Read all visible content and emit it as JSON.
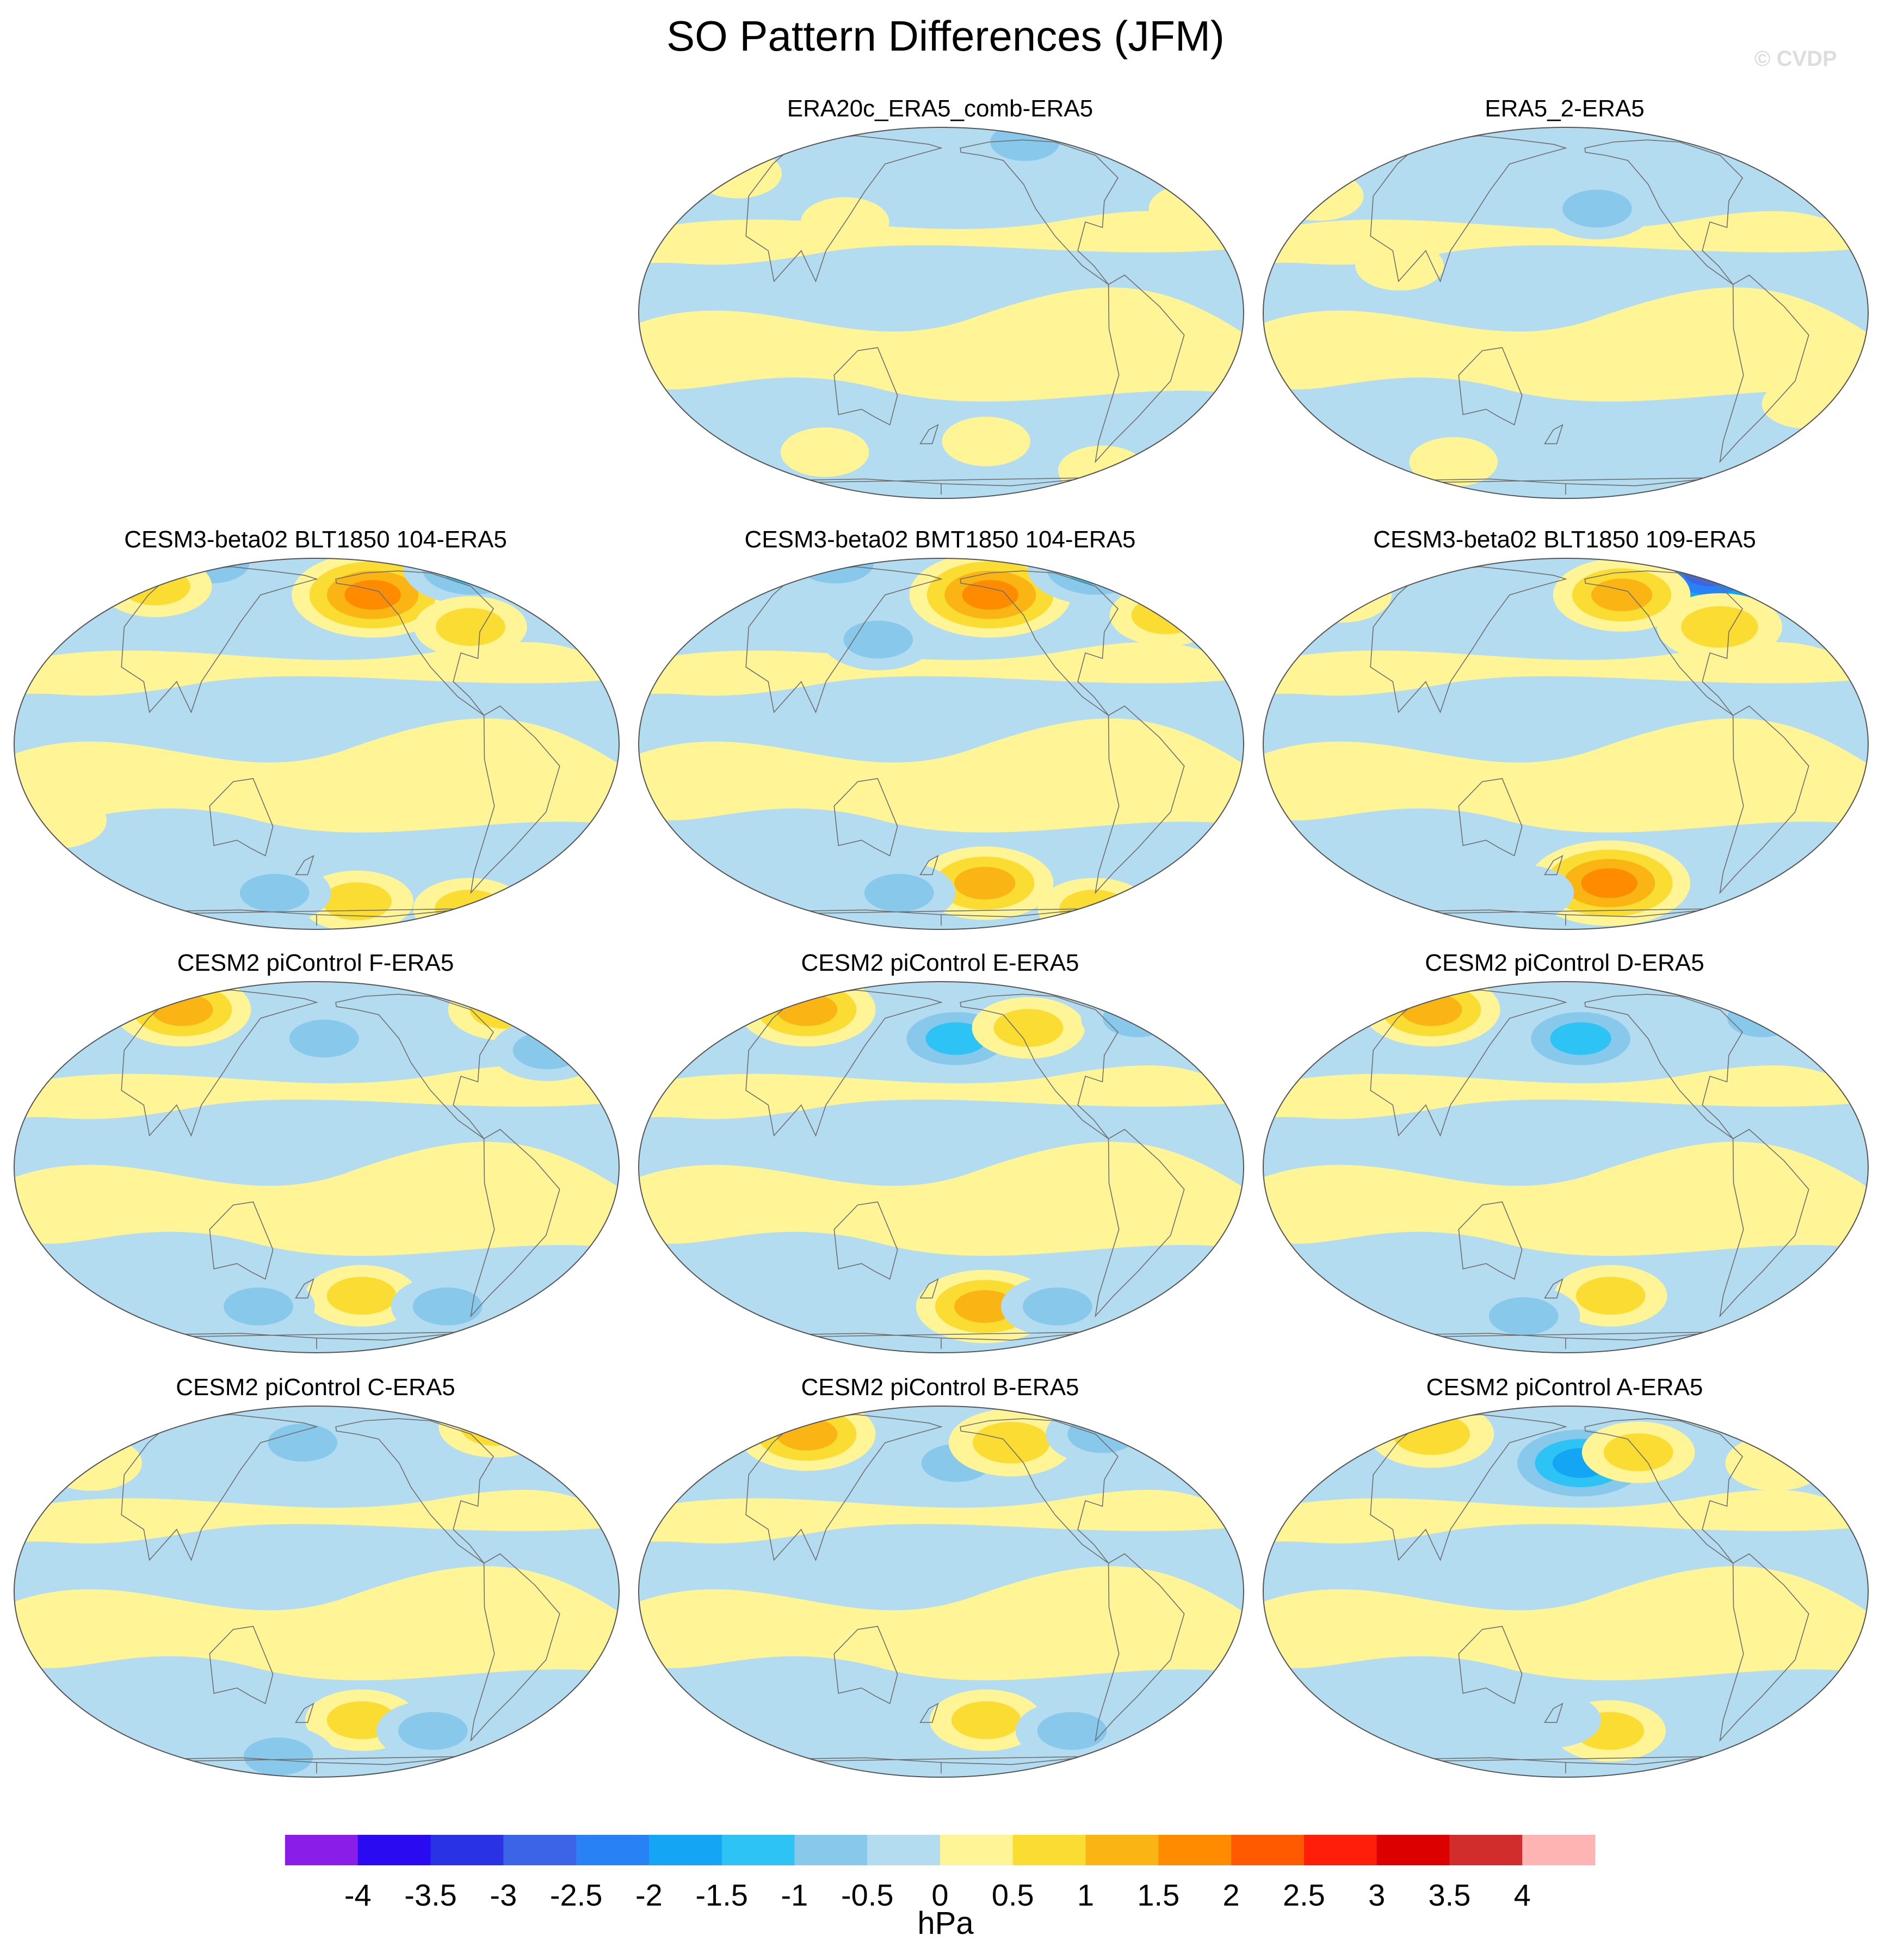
{
  "title": "SO Pattern Differences (JFM)",
  "watermark": "© CVDP",
  "chart_data": {
    "type": "contour-map-panels",
    "projection": "Robinson-like global map",
    "variable": "SO pattern difference",
    "units": "hPa",
    "colorbar": {
      "levels": [
        -4,
        -3.5,
        -3,
        -2.5,
        -2,
        -1.5,
        -1,
        -0.5,
        0,
        0.5,
        1,
        1.5,
        2,
        2.5,
        3,
        3.5,
        4
      ],
      "tick_labels": [
        "-4",
        "-3.5",
        "-3",
        "-2.5",
        "-2",
        "-1.5",
        "-1",
        "-0.5",
        "0",
        "0.5",
        "1",
        "1.5",
        "2",
        "2.5",
        "3",
        "3.5",
        "4"
      ],
      "colors": [
        "#8a1ee8",
        "#2a0af0",
        "#2a32e6",
        "#3c64e6",
        "#2882f5",
        "#14a5f5",
        "#2dc3f5",
        "#87c8eb",
        "#b4dcf0",
        "#fff596",
        "#fadc32",
        "#fab414",
        "#ff8c00",
        "#ff5a00",
        "#ff1e0a",
        "#dc0000",
        "#d22d2d",
        "#ffb4b4"
      ],
      "label": "hPa"
    },
    "panels": [
      {
        "title": "ERA20c_ERA5_comb-ERA5",
        "features": [
          {
            "lon": -110,
            "lat": 70,
            "value": -0.75
          },
          {
            "lon": -60,
            "lat": 55,
            "value": -0.5
          },
          {
            "lon": -20,
            "lat": 35,
            "value": 0.25
          },
          {
            "lon": 120,
            "lat": 30,
            "value": 0.25
          },
          {
            "lon": 40,
            "lat": 50,
            "value": 0.25
          },
          {
            "lon": -150,
            "lat": -45,
            "value": 0.25
          },
          {
            "lon": -60,
            "lat": -60,
            "value": 0.25
          },
          {
            "lon": 100,
            "lat": -50,
            "value": 0.25
          }
        ]
      },
      {
        "title": "ERA5_2-ERA5",
        "features": [
          {
            "lon": -160,
            "lat": 35,
            "value": -0.75
          },
          {
            "lon": -90,
            "lat": 60,
            "value": -0.25
          },
          {
            "lon": 80,
            "lat": 15,
            "value": 0.25
          },
          {
            "lon": 20,
            "lat": 40,
            "value": 0.25
          },
          {
            "lon": -120,
            "lat": -15,
            "value": 0.25
          },
          {
            "lon": -30,
            "lat": -30,
            "value": 0.25
          },
          {
            "lon": 100,
            "lat": -55,
            "value": 0.25
          }
        ]
      },
      {
        "title": "CESM3-beta02 BLT1850 104-ERA5",
        "features": [
          {
            "lon": -140,
            "lat": 55,
            "value": 1.75
          },
          {
            "lon": -40,
            "lat": 75,
            "value": -1.25
          },
          {
            "lon": 60,
            "lat": 85,
            "value": -1.0
          },
          {
            "lon": 60,
            "lat": 60,
            "value": 0.75
          },
          {
            "lon": -80,
            "lat": 40,
            "value": 0.75
          },
          {
            "lon": -150,
            "lat": -60,
            "value": 0.75
          },
          {
            "lon": -60,
            "lat": -65,
            "value": 0.75
          },
          {
            "lon": 150,
            "lat": -55,
            "value": -0.75
          },
          {
            "lon": 20,
            "lat": -25,
            "value": 0.5
          }
        ]
      },
      {
        "title": "CESM3-beta02 BMT1850 104-ERA5",
        "features": [
          {
            "lon": -145,
            "lat": 55,
            "value": 1.75
          },
          {
            "lon": -40,
            "lat": 75,
            "value": -1.25
          },
          {
            "lon": 60,
            "lat": 85,
            "value": -1.0
          },
          {
            "lon": 140,
            "lat": 35,
            "value": -0.75
          },
          {
            "lon": -30,
            "lat": 45,
            "value": 0.75
          },
          {
            "lon": -150,
            "lat": -50,
            "value": 1.25
          },
          {
            "lon": -60,
            "lat": -65,
            "value": 0.75
          },
          {
            "lon": 150,
            "lat": -55,
            "value": -0.75
          }
        ]
      },
      {
        "title": "CESM3-beta02 BLT1850 109-ERA5",
        "features": [
          {
            "lon": -60,
            "lat": 70,
            "value": -2.75
          },
          {
            "lon": -140,
            "lat": 55,
            "value": 1.25
          },
          {
            "lon": -80,
            "lat": 40,
            "value": 1.0
          },
          {
            "lon": 20,
            "lat": 55,
            "value": 0.5
          },
          {
            "lon": -150,
            "lat": -50,
            "value": 1.75
          },
          {
            "lon": 150,
            "lat": -55,
            "value": -0.5
          }
        ]
      },
      {
        "title": "CESM2 piControl F-ERA5",
        "features": [
          {
            "lon": 80,
            "lat": 60,
            "value": 1.25
          },
          {
            "lon": -40,
            "lat": 60,
            "value": 0.75
          },
          {
            "lon": -175,
            "lat": 45,
            "value": -0.75
          },
          {
            "lon": -30,
            "lat": 40,
            "value": -0.75
          },
          {
            "lon": -150,
            "lat": -45,
            "value": 0.75
          },
          {
            "lon": -90,
            "lat": -50,
            "value": -0.75
          },
          {
            "lon": 140,
            "lat": -50,
            "value": -0.75
          }
        ]
      },
      {
        "title": "CESM2 piControl E-ERA5",
        "features": [
          {
            "lon": 80,
            "lat": 60,
            "value": 1.25
          },
          {
            "lon": -170,
            "lat": 45,
            "value": -1.25
          },
          {
            "lon": -120,
            "lat": 50,
            "value": 0.75
          },
          {
            "lon": -40,
            "lat": 55,
            "value": -0.75
          },
          {
            "lon": -150,
            "lat": -50,
            "value": 1.25
          },
          {
            "lon": -100,
            "lat": -50,
            "value": -0.75
          }
        ]
      },
      {
        "title": "CESM2 piControl D-ERA5",
        "features": [
          {
            "lon": 80,
            "lat": 60,
            "value": 1.25
          },
          {
            "lon": -170,
            "lat": 45,
            "value": -1.25
          },
          {
            "lon": -40,
            "lat": 55,
            "value": -0.75
          },
          {
            "lon": -150,
            "lat": -45,
            "value": 0.75
          },
          {
            "lon": 150,
            "lat": -55,
            "value": -0.75
          }
        ]
      },
      {
        "title": "CESM2 piControl C-ERA5",
        "features": [
          {
            "lon": -40,
            "lat": 65,
            "value": 0.75
          },
          {
            "lon": 170,
            "lat": 55,
            "value": -0.75
          },
          {
            "lon": 30,
            "lat": 45,
            "value": 0.5
          },
          {
            "lon": -150,
            "lat": -45,
            "value": 0.75
          },
          {
            "lon": -100,
            "lat": -50,
            "value": -0.75
          },
          {
            "lon": 150,
            "lat": -65,
            "value": -0.75
          }
        ]
      },
      {
        "title": "CESM2 piControl B-ERA5",
        "features": [
          {
            "lon": 80,
            "lat": 60,
            "value": 1.25
          },
          {
            "lon": -170,
            "lat": 45,
            "value": -0.75
          },
          {
            "lon": -130,
            "lat": 55,
            "value": 1.0
          },
          {
            "lon": -60,
            "lat": 60,
            "value": -0.75
          },
          {
            "lon": -150,
            "lat": -45,
            "value": 0.75
          },
          {
            "lon": -90,
            "lat": -50,
            "value": -0.75
          }
        ]
      },
      {
        "title": "CESM2 piControl A-ERA5",
        "features": [
          {
            "lon": 80,
            "lat": 60,
            "value": 1.0
          },
          {
            "lon": -170,
            "lat": 45,
            "value": -1.75
          },
          {
            "lon": -130,
            "lat": 50,
            "value": 0.75
          },
          {
            "lon": -40,
            "lat": 45,
            "value": 0.5
          },
          {
            "lon": -150,
            "lat": -50,
            "value": 0.75
          },
          {
            "lon": 170,
            "lat": -45,
            "value": -0.5
          }
        ]
      }
    ]
  }
}
